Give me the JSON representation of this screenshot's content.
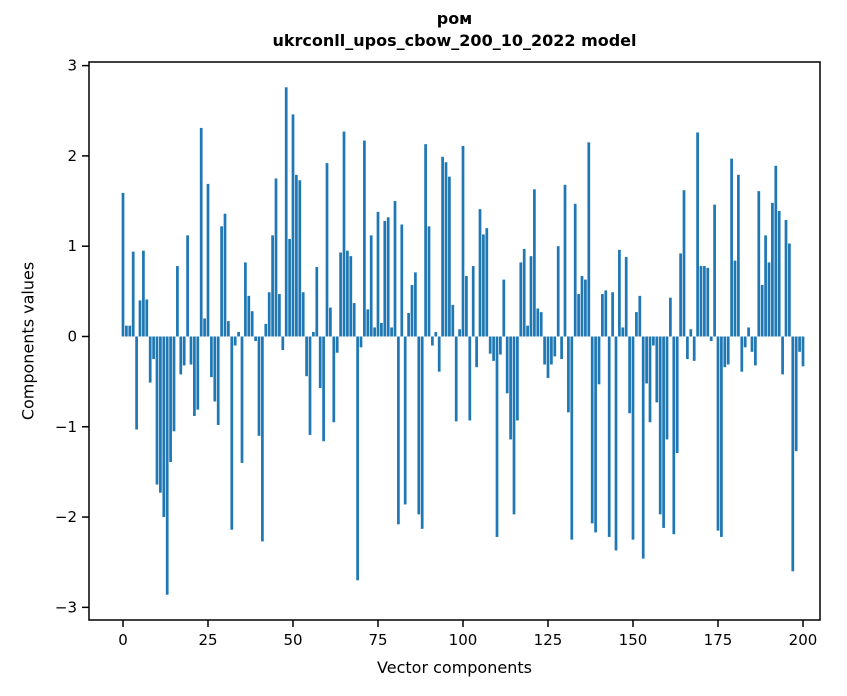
{
  "figure": {
    "title_line1": "ром",
    "title_line2": "ukrconll_upos_cbow_200_10_2022 model"
  },
  "chart_data": {
    "type": "bar",
    "title": "ром",
    "subtitle": "ukrconll_upos_cbow_200_10_2022 model",
    "xlabel": "Vector components",
    "ylabel": "Components values",
    "legend": "none",
    "grid": false,
    "bar_color": "#1f77b4",
    "axis_color": "#000000",
    "xlim": [
      -10,
      205
    ],
    "ylim": [
      -3.14,
      3.04
    ],
    "x_ticks": [
      0,
      25,
      50,
      75,
      100,
      125,
      150,
      175,
      200
    ],
    "x_tick_labels": [
      "0",
      "25",
      "50",
      "75",
      "100",
      "125",
      "150",
      "175",
      "200"
    ],
    "y_ticks": [
      3,
      2,
      1,
      0,
      -1,
      -2,
      -3
    ],
    "y_tick_labels": [
      "3",
      "2",
      "1",
      "0",
      "−1",
      "−2",
      "−3"
    ],
    "x_start": 0,
    "values": [
      1.59,
      0.12,
      0.12,
      0.94,
      -1.03,
      0.4,
      0.95,
      0.41,
      -0.51,
      -0.25,
      -1.64,
      -1.73,
      -2.0,
      -2.86,
      -1.39,
      -1.05,
      0.78,
      -0.42,
      -0.32,
      1.12,
      -0.31,
      -0.88,
      -0.81,
      2.31,
      0.2,
      1.69,
      -0.45,
      -0.72,
      -0.98,
      1.22,
      1.36,
      0.17,
      -2.14,
      -0.1,
      0.05,
      -1.4,
      0.82,
      0.45,
      0.28,
      -0.05,
      -1.1,
      -2.27,
      0.14,
      0.49,
      1.12,
      1.75,
      0.47,
      -0.15,
      2.76,
      1.08,
      2.46,
      1.79,
      1.73,
      0.49,
      -0.44,
      -1.09,
      0.05,
      0.77,
      -0.57,
      -1.16,
      1.92,
      0.32,
      -0.95,
      -0.18,
      0.93,
      2.27,
      0.95,
      0.89,
      0.37,
      -2.7,
      -0.12,
      2.17,
      0.3,
      1.12,
      0.1,
      1.38,
      0.15,
      1.28,
      1.32,
      0.1,
      1.5,
      -2.08,
      1.24,
      -1.86,
      0.26,
      0.57,
      0.71,
      -1.97,
      -2.13,
      2.13,
      1.22,
      -0.1,
      0.05,
      -0.39,
      1.99,
      1.93,
      1.77,
      0.35,
      -0.94,
      0.08,
      2.11,
      0.67,
      -0.93,
      0.78,
      -0.34,
      1.41,
      1.13,
      1.2,
      -0.19,
      -0.27,
      -2.22,
      -0.2,
      0.63,
      -0.63,
      -1.14,
      -1.97,
      -0.93,
      0.82,
      0.97,
      0.12,
      0.89,
      1.63,
      0.31,
      0.27,
      -0.31,
      -0.46,
      -0.31,
      -0.22,
      1.0,
      -0.25,
      1.68,
      -0.84,
      -2.25,
      1.47,
      0.47,
      0.67,
      0.63,
      2.15,
      -2.07,
      -2.17,
      -0.53,
      0.47,
      0.51,
      -2.22,
      0.49,
      -2.37,
      0.96,
      0.1,
      0.88,
      -0.85,
      -2.25,
      0.27,
      0.45,
      -2.46,
      -0.52,
      -0.95,
      -0.1,
      -0.73,
      -1.97,
      -2.12,
      -1.14,
      0.43,
      -2.19,
      -1.29,
      0.92,
      1.62,
      -0.25,
      0.08,
      -0.27,
      2.26,
      0.78,
      0.78,
      0.76,
      -0.05,
      1.46,
      -2.15,
      -2.22,
      -0.34,
      -0.31,
      1.97,
      0.84,
      1.79,
      -0.39,
      -0.12,
      0.1,
      -0.17,
      -0.32,
      1.61,
      0.57,
      1.12,
      0.82,
      1.48,
      1.89,
      1.39,
      -0.42,
      1.29,
      1.03,
      -2.6,
      -1.27,
      -0.17,
      -0.33
    ]
  },
  "geometry_note": "matplotlib-style static figure"
}
